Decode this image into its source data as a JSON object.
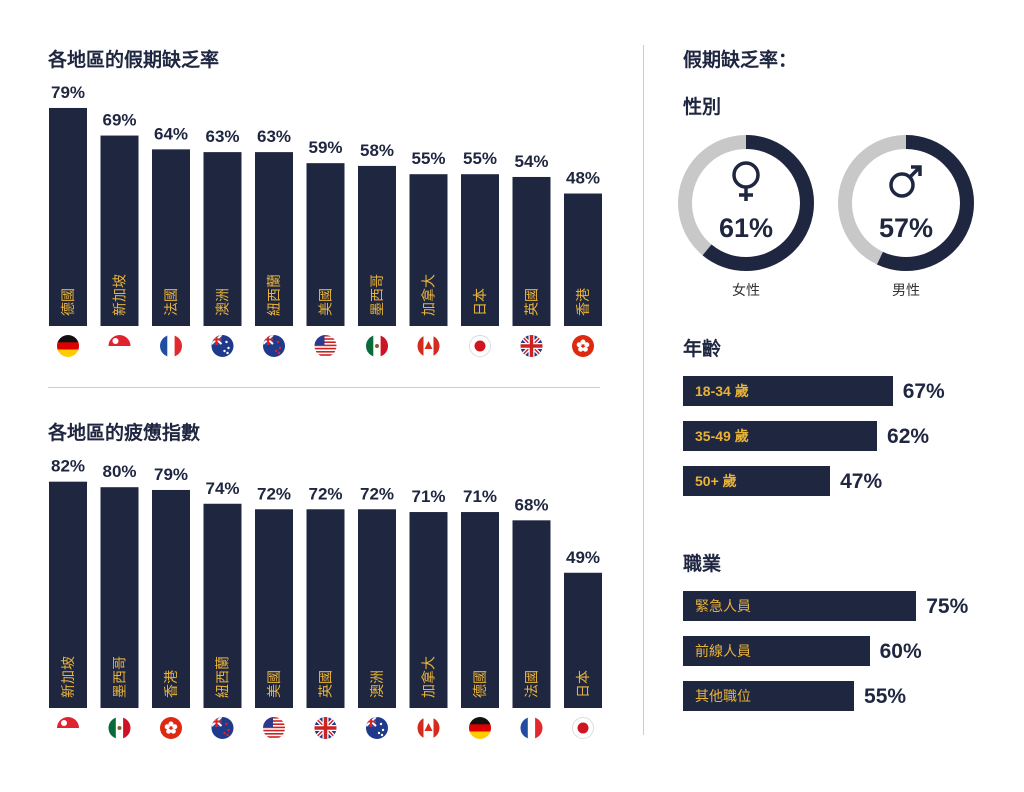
{
  "colors": {
    "navy": "#1f2640",
    "label": "#e8b339",
    "ring_bg": "#c8c8c8"
  },
  "chart_data": [
    {
      "type": "bar",
      "title": "各地區的假期缺乏率",
      "categories": [
        "德國",
        "新加坡",
        "法國",
        "澳洲",
        "紐西蘭",
        "美國",
        "墨西哥",
        "加拿大",
        "日本",
        "英國",
        "香港"
      ],
      "flags": [
        "de",
        "sg",
        "fr",
        "au",
        "nz",
        "us",
        "mx",
        "ca",
        "jp",
        "gb",
        "hk"
      ],
      "values": [
        79,
        69,
        64,
        63,
        63,
        59,
        58,
        55,
        55,
        54,
        48
      ],
      "value_labels": [
        "79%",
        "69%",
        "64%",
        "63%",
        "63%",
        "59%",
        "58%",
        "55%",
        "55%",
        "54%",
        "48%"
      ]
    },
    {
      "type": "bar",
      "title": "各地區的疲憊指數",
      "categories": [
        "新加坡",
        "墨西哥",
        "香港",
        "紐西蘭",
        "美國",
        "英國",
        "澳洲",
        "加拿大",
        "德國",
        "法國",
        "日本"
      ],
      "flags": [
        "sg",
        "mx",
        "hk",
        "nz",
        "us",
        "gb",
        "au",
        "ca",
        "de",
        "fr",
        "jp"
      ],
      "values": [
        82,
        80,
        79,
        74,
        72,
        72,
        72,
        71,
        71,
        68,
        49
      ],
      "value_labels": [
        "82%",
        "80%",
        "79%",
        "74%",
        "72%",
        "72%",
        "72%",
        "71%",
        "71%",
        "68%",
        "49%"
      ]
    },
    {
      "type": "pie",
      "title": "假期缺乏率：",
      "subtitle": "性別",
      "items": [
        {
          "label": "女性",
          "value": 61,
          "value_label": "61%",
          "icon": "female-icon"
        },
        {
          "label": "男性",
          "value": 57,
          "value_label": "57%",
          "icon": "male-icon"
        }
      ]
    },
    {
      "type": "bar",
      "orientation": "horizontal",
      "title": "年齡",
      "categories": [
        "18-34 歲",
        "35-49 歲",
        "50+ 歲"
      ],
      "values": [
        67,
        62,
        47
      ],
      "value_labels": [
        "67%",
        "62%",
        "47%"
      ]
    },
    {
      "type": "bar",
      "orientation": "horizontal",
      "title": "職業",
      "categories": [
        "緊急人員",
        "前線人員",
        "其他職位"
      ],
      "values": [
        75,
        60,
        55
      ],
      "value_labels": [
        "75%",
        "60%",
        "55%"
      ]
    }
  ]
}
